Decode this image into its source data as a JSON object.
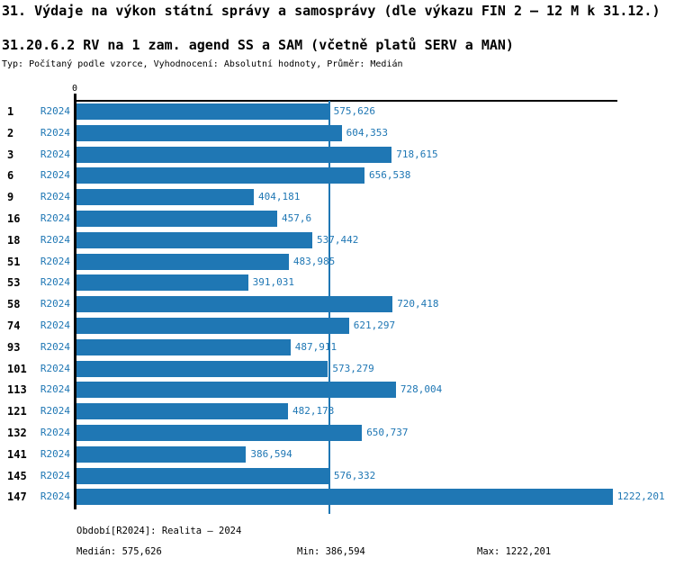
{
  "header": {
    "title": "31. Výdaje na výkon státní správy a samosprávy (dle výkazu FIN 2 – 12 M k 31.12.)",
    "subtitle": "31.20.6.2 RV na 1 zam. agend SS a SAM (včetně platů SERV a MAN)",
    "meta": "Typ: Počítaný podle vzorce, Vyhodnocení: Absolutní hodnoty, Průměr: Medián"
  },
  "chart_data": {
    "type": "bar",
    "orientation": "horizontal",
    "title": "31.20.6.2 RV na 1 zam. agend SS a SAM (včetně platů SERV a MAN)",
    "categories": [
      "1",
      "2",
      "3",
      "6",
      "9",
      "16",
      "18",
      "51",
      "53",
      "58",
      "74",
      "93",
      "101",
      "113",
      "121",
      "132",
      "141",
      "145",
      "147"
    ],
    "series_name": "R2024",
    "values": [
      575.626,
      604.353,
      718.615,
      656.538,
      404.181,
      457.6,
      537.442,
      483.985,
      391.031,
      720.418,
      621.297,
      487.911,
      573.279,
      728.004,
      482.173,
      650.737,
      386.594,
      576.332,
      1222.201
    ],
    "value_labels": [
      "575,626",
      "604,353",
      "718,615",
      "656,538",
      "404,181",
      "457,6",
      "537,442",
      "483,985",
      "391,031",
      "720,418",
      "621,297",
      "487,911",
      "573,279",
      "728,004",
      "482,173",
      "650,737",
      "386,594",
      "576,332",
      "1222,201"
    ],
    "axis_zero_label": "0",
    "xlim": [
      0,
      1233
    ],
    "gridlines": false,
    "median_value": 575.626,
    "min_value": 386.594,
    "max_value": 1222.201,
    "bar_color": "#1f77b4",
    "label_color": "#1f77b4",
    "median_line_color": "#1f77b4"
  },
  "footer": {
    "period": "Období[R2024]: Realita – 2024",
    "median": "Medián: 575,626",
    "min": "Min: 386,594",
    "max": "Max: 1222,201"
  }
}
